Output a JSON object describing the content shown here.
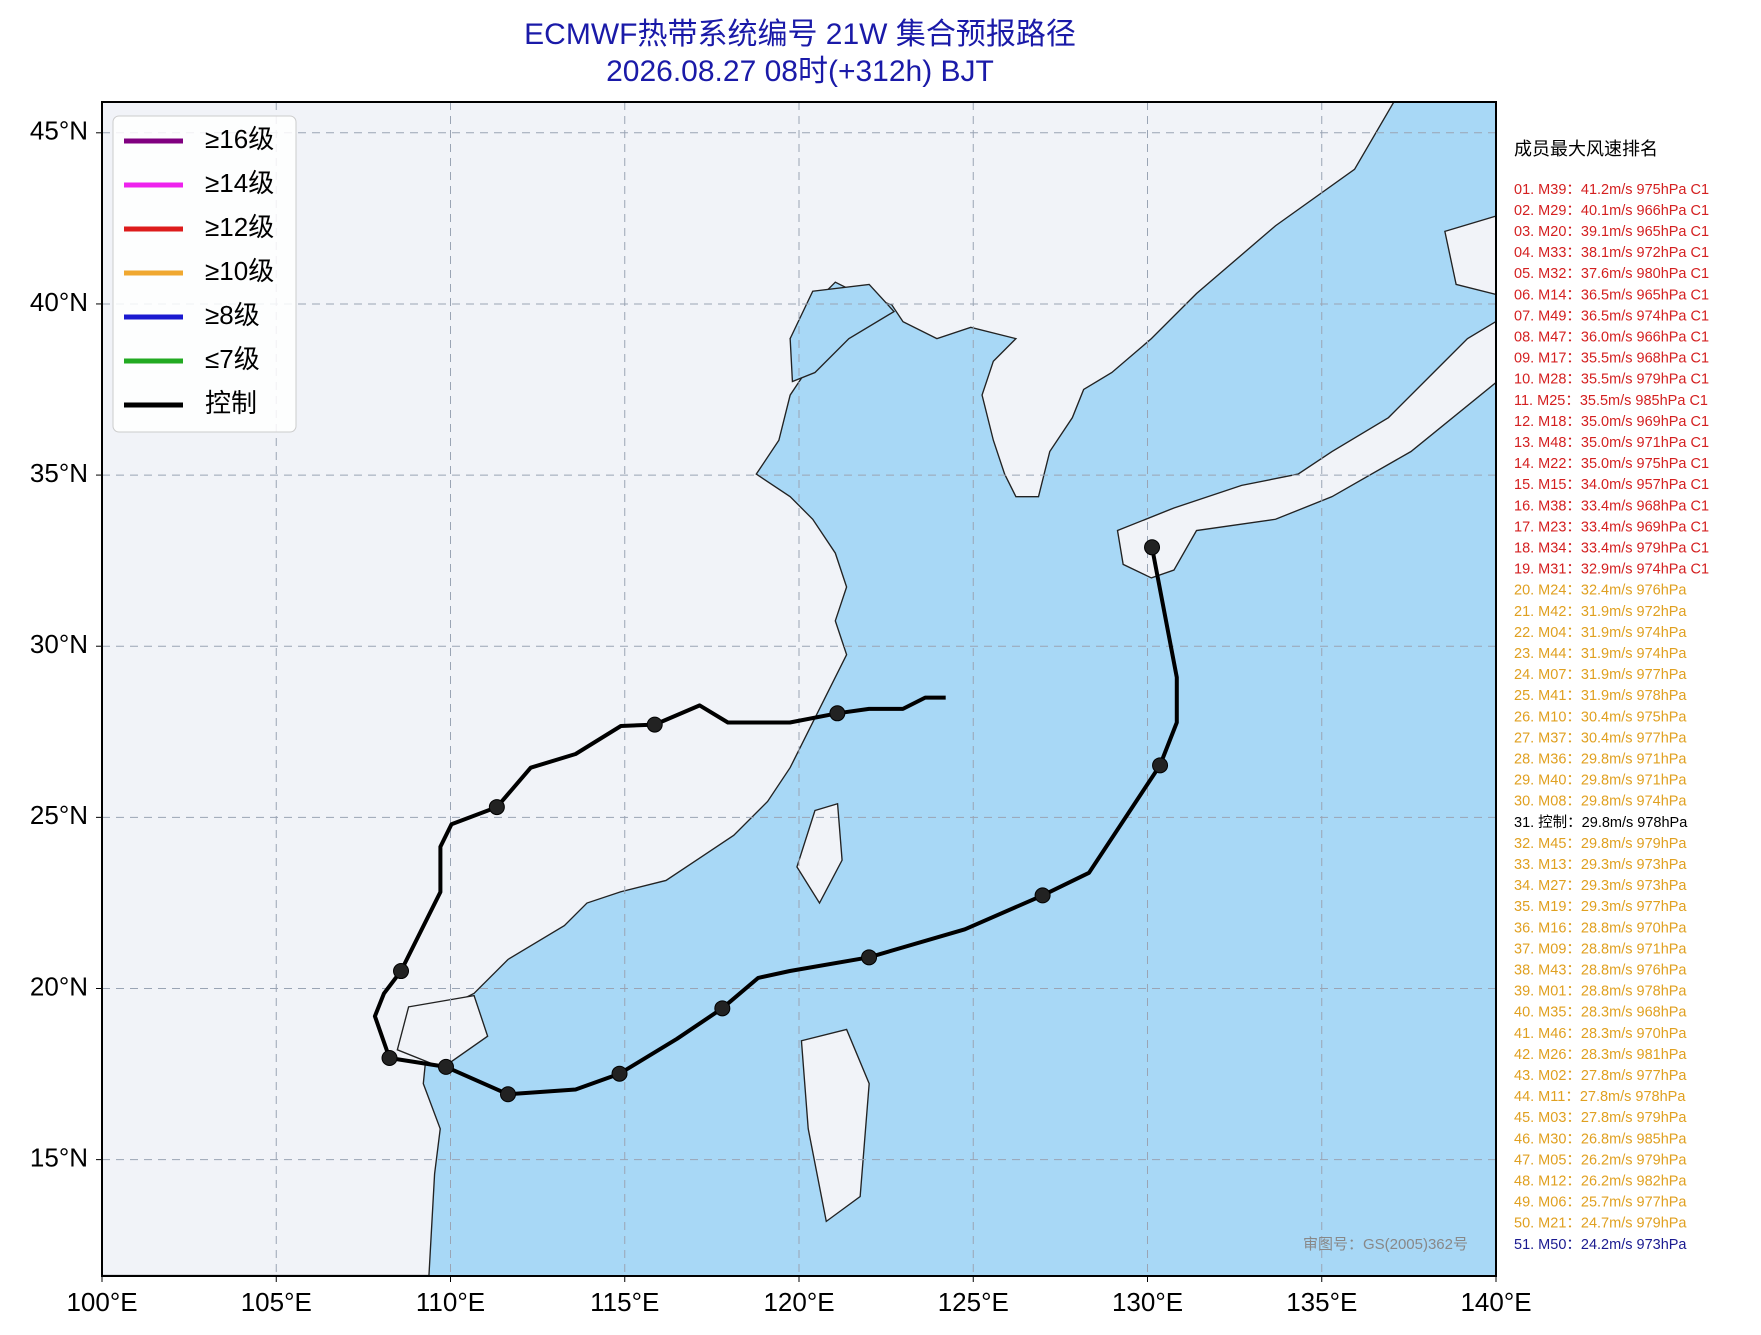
{
  "title": "ECMWF热带系统编号 21W 集合预报路径",
  "subtitle": "2026.08.27 08时(+312h) BJT",
  "map": {
    "xlim": [
      100,
      140
    ],
    "ylim": [
      11.6,
      45.9
    ],
    "xticks": [
      {
        "value": 100,
        "label": "100°E"
      },
      {
        "value": 105,
        "label": "105°E"
      },
      {
        "value": 110,
        "label": "110°E"
      },
      {
        "value": 115,
        "label": "115°E"
      },
      {
        "value": 120,
        "label": "120°E"
      },
      {
        "value": 125,
        "label": "125°E"
      },
      {
        "value": 130,
        "label": "130°E"
      },
      {
        "value": 135,
        "label": "135°E"
      },
      {
        "value": 140,
        "label": "140°E"
      }
    ],
    "yticks": [
      {
        "value": 15,
        "label": "15°N"
      },
      {
        "value": 20,
        "label": "20°N"
      },
      {
        "value": 25,
        "label": "25°N"
      },
      {
        "value": 30,
        "label": "30°N"
      },
      {
        "value": 35,
        "label": "35°N"
      },
      {
        "value": 40,
        "label": "40°N"
      },
      {
        "value": 45,
        "label": "45°N"
      }
    ],
    "grid": true
  },
  "legend": [
    {
      "label": "≥16级",
      "color": "#800080"
    },
    {
      "label": "≥14级",
      "color": "#ee22ee"
    },
    {
      "label": "≥12级",
      "color": "#dd1c1c"
    },
    {
      "label": "≥10级",
      "color": "#f0a830"
    },
    {
      "label": "≥8级",
      "color": "#1a1ad0"
    },
    {
      "label": "≤7级",
      "color": "#22aa22"
    },
    {
      "label": "控制",
      "color": "#000000"
    }
  ],
  "control_track": {
    "color": "#000000",
    "lon": [
      124.21,
      123.62,
      122.98,
      122.01,
      121.1,
      119.74,
      117.96,
      117.15,
      115.86,
      114.89,
      113.59,
      112.3,
      111.33,
      110.03,
      109.71,
      109.71,
      108.58,
      108.09,
      107.83,
      108.25,
      109.87,
      111.65,
      113.59,
      114.85,
      116.5,
      117.8,
      118.83,
      119.74,
      122.01,
      124.76,
      126.99,
      128.32,
      130.36,
      130.84,
      130.84,
      130.13
    ],
    "lat": [
      28.5,
      28.5,
      28.17,
      28.17,
      28.04,
      27.77,
      27.77,
      28.27,
      27.71,
      27.67,
      26.85,
      26.45,
      25.3,
      24.8,
      24.14,
      22.82,
      20.51,
      19.85,
      19.19,
      17.97,
      17.71,
      16.91,
      17.05,
      17.51,
      18.53,
      19.42,
      20.31,
      20.51,
      20.91,
      21.73,
      22.72,
      23.38,
      26.52,
      27.77,
      29.09,
      32.89
    ],
    "positions": {
      "lon": [
        121.1,
        115.86,
        111.33,
        108.58,
        108.25,
        109.87,
        111.65,
        114.85,
        117.8,
        122.01,
        126.99,
        130.36,
        130.13
      ],
      "lat": [
        28.04,
        27.71,
        25.3,
        20.51,
        17.97,
        17.71,
        16.91,
        17.51,
        19.42,
        20.91,
        22.72,
        26.52,
        32.89
      ]
    }
  },
  "ranking": {
    "title": "成员最大风速排名",
    "items": [
      {
        "text": "01. M39：41.2m/s 975hPa C1",
        "color": "#d42020"
      },
      {
        "text": "02. M29：40.1m/s 966hPa C1",
        "color": "#d42020"
      },
      {
        "text": "03. M20：39.1m/s 965hPa C1",
        "color": "#d42020"
      },
      {
        "text": "04. M33：38.1m/s 972hPa C1",
        "color": "#d42020"
      },
      {
        "text": "05. M32：37.6m/s 980hPa C1",
        "color": "#d42020"
      },
      {
        "text": "06. M14：36.5m/s 965hPa C1",
        "color": "#d42020"
      },
      {
        "text": "07. M49：36.5m/s 974hPa C1",
        "color": "#d42020"
      },
      {
        "text": "08. M47：36.0m/s 966hPa C1",
        "color": "#d42020"
      },
      {
        "text": "09. M17：35.5m/s 968hPa C1",
        "color": "#d42020"
      },
      {
        "text": "10. M28：35.5m/s 979hPa C1",
        "color": "#d42020"
      },
      {
        "text": "11. M25：35.5m/s 985hPa C1",
        "color": "#d42020"
      },
      {
        "text": "12. M18：35.0m/s 969hPa C1",
        "color": "#d42020"
      },
      {
        "text": "13. M48：35.0m/s 971hPa C1",
        "color": "#d42020"
      },
      {
        "text": "14. M22：35.0m/s 975hPa C1",
        "color": "#d42020"
      },
      {
        "text": "15. M15：34.0m/s 957hPa C1",
        "color": "#d42020"
      },
      {
        "text": "16. M38：33.4m/s 968hPa C1",
        "color": "#d42020"
      },
      {
        "text": "17. M23：33.4m/s 969hPa C1",
        "color": "#d42020"
      },
      {
        "text": "18. M34：33.4m/s 979hPa C1",
        "color": "#d42020"
      },
      {
        "text": "19. M31：32.9m/s 974hPa C1",
        "color": "#d42020"
      },
      {
        "text": "20. M24：32.4m/s 976hPa",
        "color": "#e0a020"
      },
      {
        "text": "21. M42：31.9m/s 972hPa",
        "color": "#e0a020"
      },
      {
        "text": "22. M04：31.9m/s 974hPa",
        "color": "#e0a020"
      },
      {
        "text": "23. M44：31.9m/s 974hPa",
        "color": "#e0a020"
      },
      {
        "text": "24. M07：31.9m/s 977hPa",
        "color": "#e0a020"
      },
      {
        "text": "25. M41：31.9m/s 978hPa",
        "color": "#e0a020"
      },
      {
        "text": "26. M10：30.4m/s 975hPa",
        "color": "#e0a020"
      },
      {
        "text": "27. M37：30.4m/s 977hPa",
        "color": "#e0a020"
      },
      {
        "text": "28. M36：29.8m/s 971hPa",
        "color": "#e0a020"
      },
      {
        "text": "29. M40：29.8m/s 971hPa",
        "color": "#e0a020"
      },
      {
        "text": "30. M08：29.8m/s 974hPa",
        "color": "#e0a020"
      },
      {
        "text": "31. 控制：29.8m/s 978hPa",
        "color": "#000000"
      },
      {
        "text": "32. M45：29.8m/s 979hPa",
        "color": "#e0a020"
      },
      {
        "text": "33. M13：29.3m/s 973hPa",
        "color": "#e0a020"
      },
      {
        "text": "34. M27：29.3m/s 973hPa",
        "color": "#e0a020"
      },
      {
        "text": "35. M19：29.3m/s 977hPa",
        "color": "#e0a020"
      },
      {
        "text": "36. M16：28.8m/s 970hPa",
        "color": "#e0a020"
      },
      {
        "text": "37. M09：28.8m/s 971hPa",
        "color": "#e0a020"
      },
      {
        "text": "38. M43：28.8m/s 976hPa",
        "color": "#e0a020"
      },
      {
        "text": "39. M01：28.8m/s 978hPa",
        "color": "#e0a020"
      },
      {
        "text": "40. M35：28.3m/s 968hPa",
        "color": "#e0a020"
      },
      {
        "text": "41. M46：28.3m/s 970hPa",
        "color": "#e0a020"
      },
      {
        "text": "42. M26：28.3m/s 981hPa",
        "color": "#e0a020"
      },
      {
        "text": "43. M02：27.8m/s 977hPa",
        "color": "#e0a020"
      },
      {
        "text": "44. M11：27.8m/s 978hPa",
        "color": "#e0a020"
      },
      {
        "text": "45. M03：27.8m/s 979hPa",
        "color": "#e0a020"
      },
      {
        "text": "46. M30：26.8m/s 985hPa",
        "color": "#e0a020"
      },
      {
        "text": "47. M05：26.2m/s 979hPa",
        "color": "#e0a020"
      },
      {
        "text": "48. M12：26.2m/s 982hPa",
        "color": "#e0a020"
      },
      {
        "text": "49. M06：25.7m/s 977hPa",
        "color": "#e0a020"
      },
      {
        "text": "50. M21：24.7m/s 979hPa",
        "color": "#e0a020"
      },
      {
        "text": "51. M50：24.2m/s 973hPa",
        "color": "#1a1a90"
      }
    ]
  },
  "watermark": "审图号：GS(2005)362号"
}
